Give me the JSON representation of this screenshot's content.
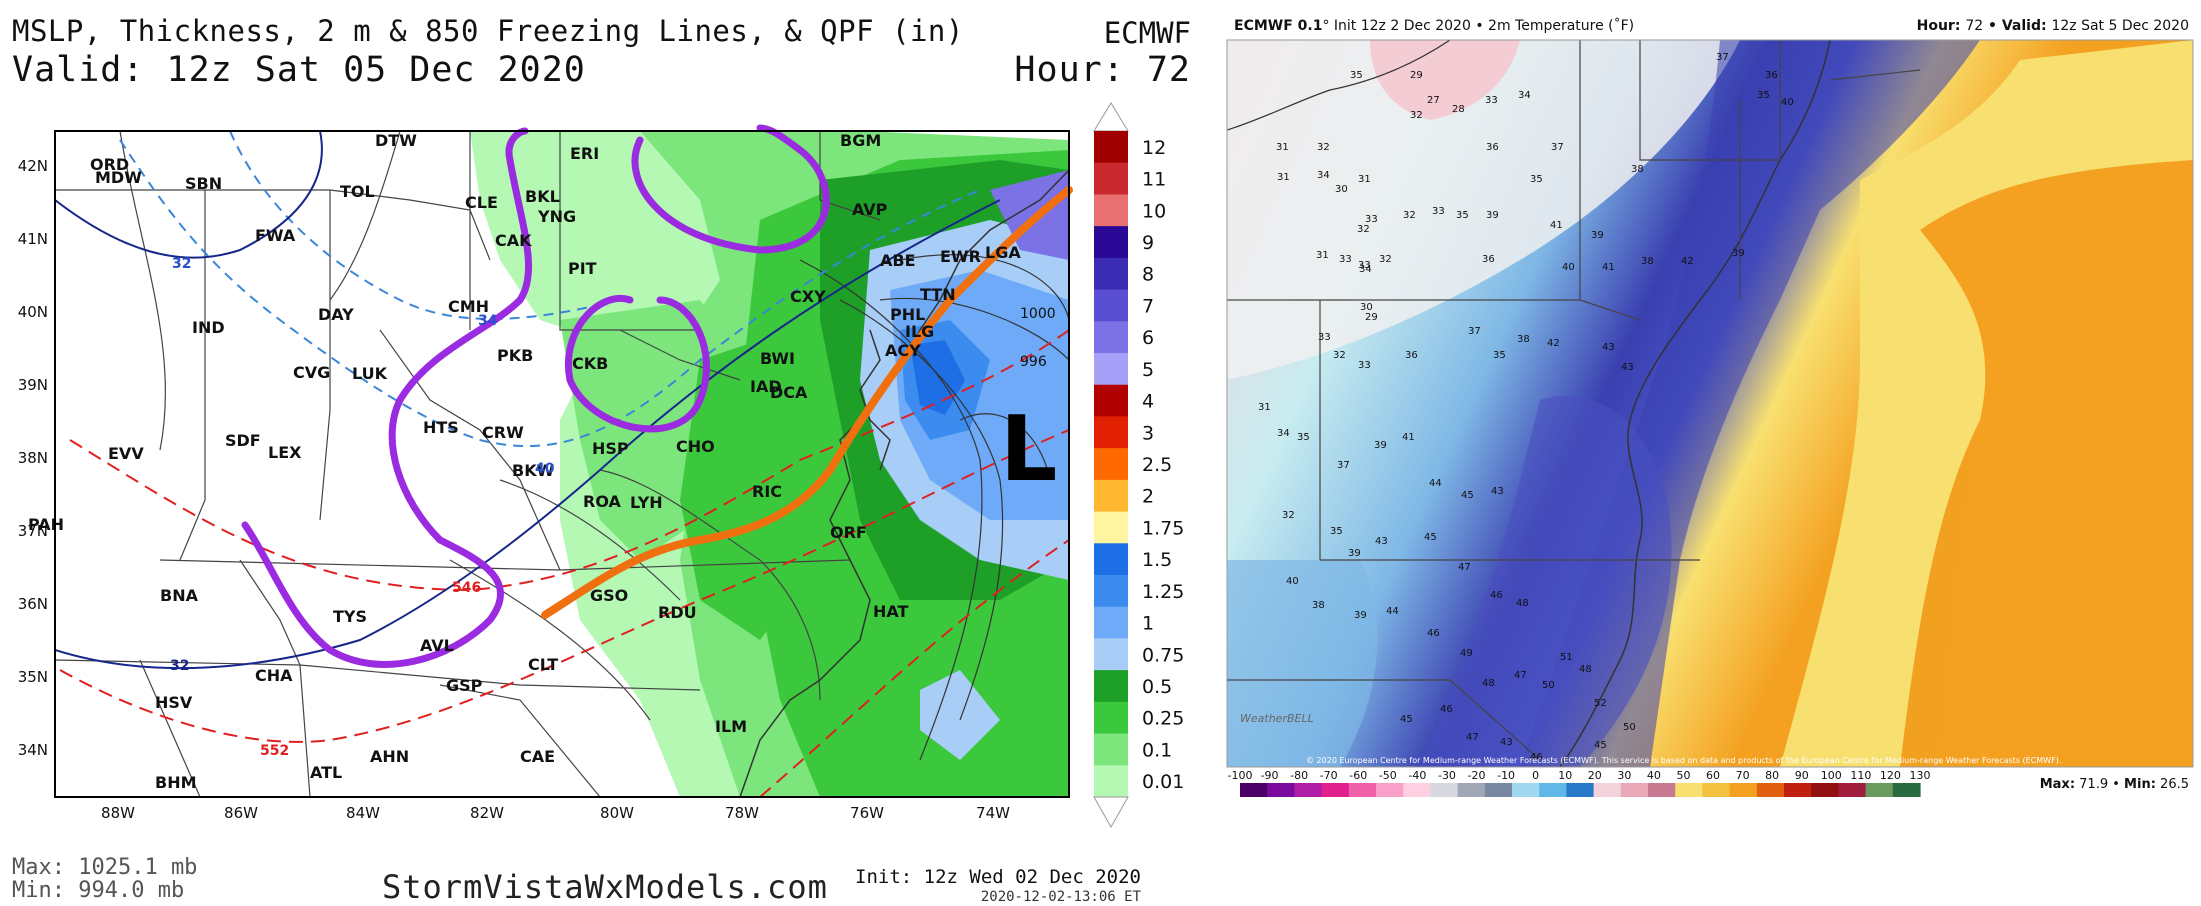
{
  "left_panel": {
    "title": "MSLP, Thickness, 2 m & 850 Freezing Lines, & QPF (in)",
    "valid": "Valid: 12z Sat 05 Dec 2020",
    "model": "ECMWF",
    "hour": "Hour: 72",
    "max": "Max: 1025.1 mb",
    "min": "Min: 994.0 mb",
    "brand": "StormVistaWxModels.com",
    "init": "Init: 12z Wed 02 Dec 2020",
    "generated": "2020-12-02-13:06",
    "tz": "ET",
    "lat_labels": [
      "42N",
      "41N",
      "40N",
      "39N",
      "38N",
      "37N",
      "36N",
      "35N",
      "34N"
    ],
    "lon_labels": [
      "88W",
      "86W",
      "84W",
      "82W",
      "80W",
      "78W",
      "76W",
      "74W"
    ],
    "colorbar": {
      "labels": [
        "12",
        "11",
        "10",
        "9",
        "8",
        "7",
        "6",
        "5",
        "4",
        "3",
        "2.5",
        "2",
        "1.75",
        "1.5",
        "1.25",
        "1",
        "0.75",
        "0.5",
        "0.25",
        "0.1",
        "0.01"
      ],
      "colors": [
        "#a00000",
        "#c8282e",
        "#e87070",
        "#2a0896",
        "#3c2cb4",
        "#5a4ed2",
        "#7c72e6",
        "#a8a0f8",
        "#b00000",
        "#e02000",
        "#ff6a00",
        "#ffb830",
        "#fff4a0",
        "#1e6ee6",
        "#3c8cf0",
        "#6eaaf8",
        "#a8cef8",
        "#1ea028",
        "#3cc83c",
        "#7ce67c",
        "#b4f8b4"
      ]
    },
    "cities": [
      "ORD",
      "MDW",
      "SBN",
      "TOL",
      "DTW",
      "ERI",
      "BGM",
      "CLE",
      "BKL",
      "YNG",
      "AVP",
      "FWA",
      "CAK",
      "PIT",
      "ABE",
      "EWR",
      "LGA",
      "IND",
      "DAY",
      "CMH",
      "TTN",
      "PHL",
      "ILG",
      "CXY",
      "CVG",
      "LUK",
      "PKB",
      "CKB",
      "BWI",
      "IAD",
      "DCA",
      "ACY",
      "EVV",
      "SDF",
      "LEX",
      "HTS",
      "CRW",
      "HSP",
      "CHO",
      "BKW",
      "RIC",
      "ROA",
      "LYH",
      "ORF",
      "PAH",
      "BNA",
      "TYS",
      "AVL",
      "GSO",
      "RDU",
      "HAT",
      "CHA",
      "HSV",
      "GSP",
      "CLT",
      "ILM",
      "AHN",
      "CAE",
      "ATL",
      "BHM"
    ],
    "isobars": [
      "1000",
      "996"
    ],
    "thickness": [
      "546",
      "552"
    ],
    "freezing": [
      "32",
      "34",
      "40"
    ],
    "low_symbol": "L"
  },
  "right_panel": {
    "header_model": "ECMWF 0.1",
    "header_rest": "° Init 12z 2 Dec 2020 • 2m Temperature (˚F)",
    "hour_label": "Hour:",
    "hour_value": "72",
    "valid_label": "Valid:",
    "valid_value": "12z Sat 5 Dec 2020",
    "max_label": "Max:",
    "max_value": "71.9",
    "min_label": "Min:",
    "min_value": "26.5",
    "copyright": "© 2020 European Centre for Medium-range Weather Forecasts (ECMWF). This service is based on data and products of the European Centre for Medium-range Weather Forecasts (ECMWF).",
    "watermark": "WeatherBELL",
    "scale_ticks": [
      "-100",
      "-90",
      "-80",
      "-70",
      "-60",
      "-50",
      "-40",
      "-30",
      "-20",
      "-10",
      "0",
      "10",
      "20",
      "30",
      "40",
      "50",
      "60",
      "70",
      "80",
      "90",
      "100",
      "110",
      "120",
      "130"
    ],
    "colors": {
      "cold": "#3a3fb0",
      "cool": "#7fb8e6",
      "cold_pink": "#f4d2dc",
      "warm": "#f4a020",
      "hot": "#f8e070"
    }
  }
}
